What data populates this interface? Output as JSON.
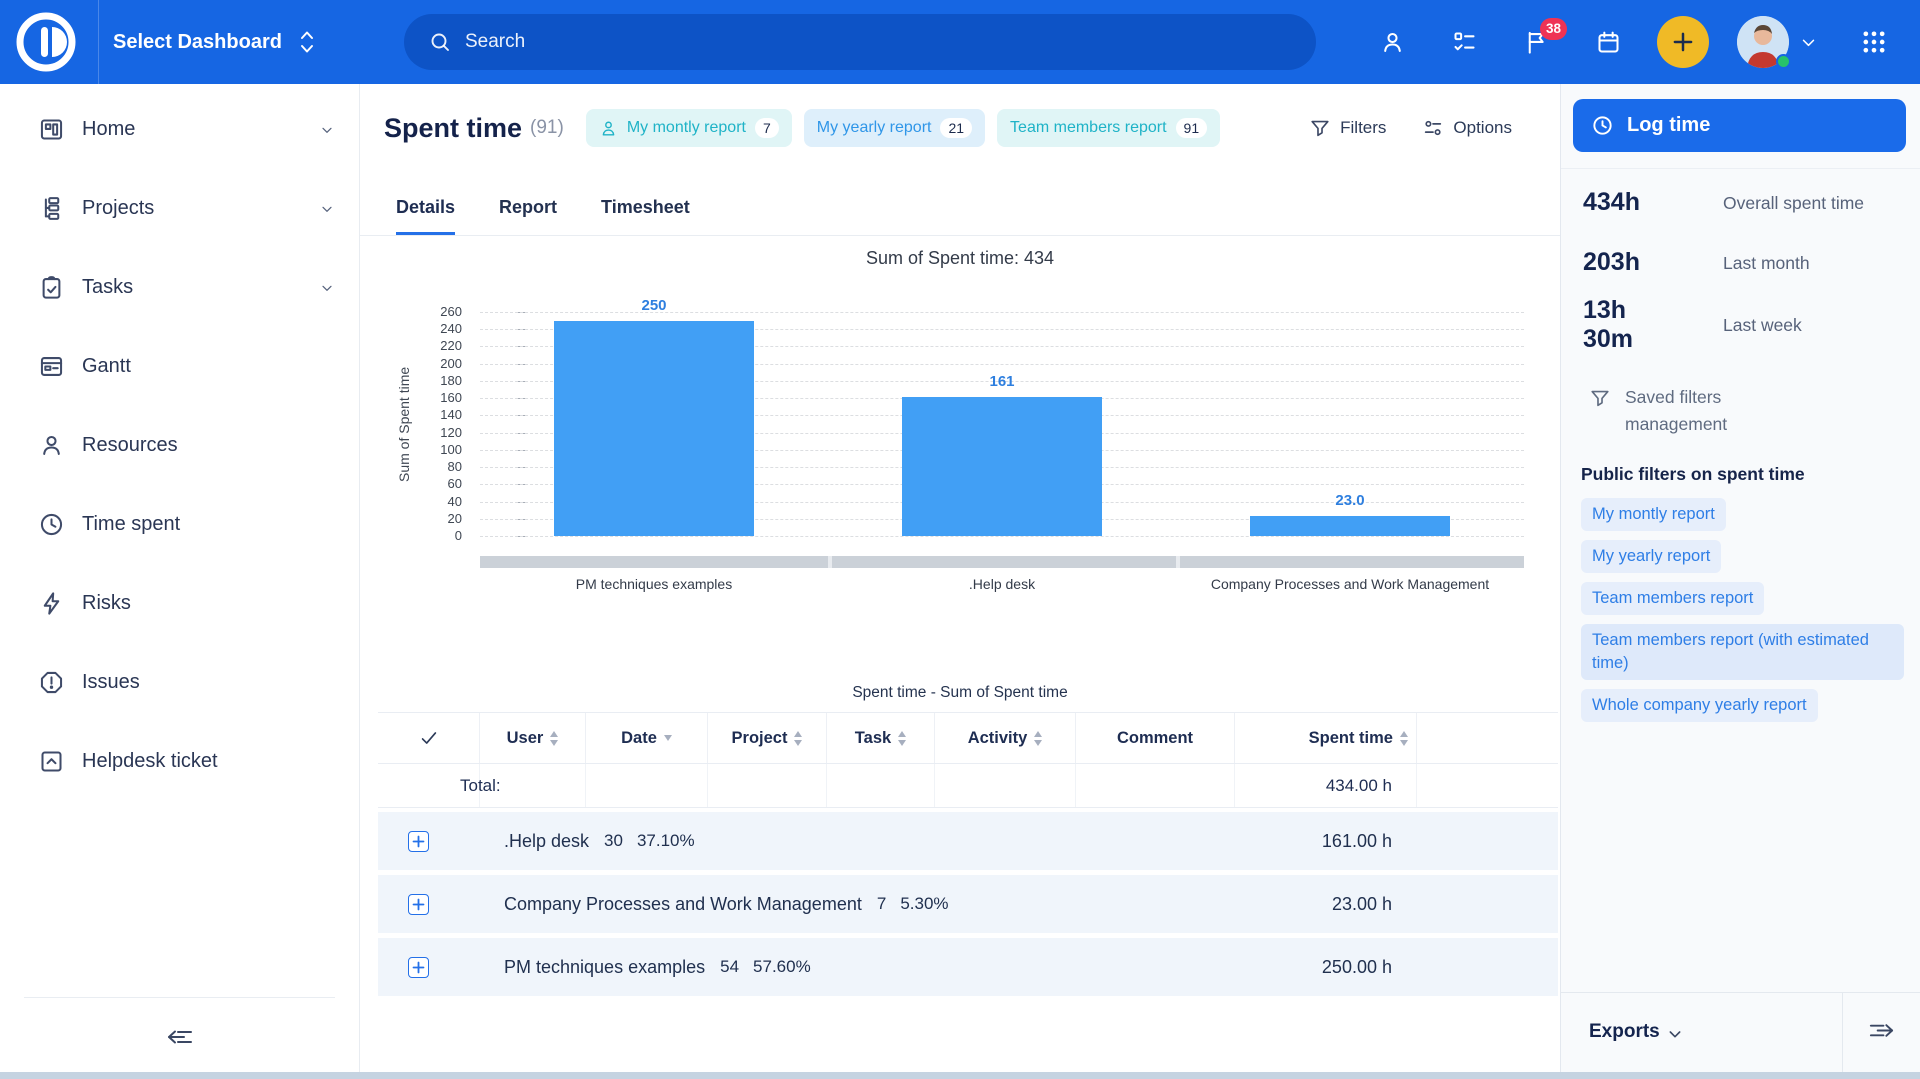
{
  "topbar": {
    "dashboard_selector": "Select Dashboard",
    "search_placeholder": "Search",
    "actions": [
      {
        "icon": "user-icon"
      },
      {
        "icon": "checklist-icon"
      },
      {
        "icon": "flag-icon",
        "badge": "38"
      },
      {
        "icon": "calendar-icon"
      }
    ]
  },
  "sidebar": {
    "items": [
      {
        "label": "Home",
        "icon": "home-dashboard-icon",
        "expandable": true
      },
      {
        "label": "Projects",
        "icon": "projects-icon",
        "expandable": true
      },
      {
        "label": "Tasks",
        "icon": "tasks-icon",
        "expandable": true
      },
      {
        "label": "Gantt",
        "icon": "gantt-icon",
        "expandable": false
      },
      {
        "label": "Resources",
        "icon": "resources-icon",
        "expandable": false
      },
      {
        "label": "Time spent",
        "icon": "clock-icon",
        "expandable": false
      },
      {
        "label": "Risks",
        "icon": "risks-icon",
        "expandable": false
      },
      {
        "label": "Issues",
        "icon": "issues-icon",
        "expandable": false
      },
      {
        "label": "Helpdesk ticket",
        "icon": "helpdesk-icon",
        "expandable": false
      }
    ]
  },
  "header": {
    "title": "Spent time",
    "count": "(91)",
    "chips": [
      {
        "label": "My montly report",
        "count": "7",
        "style": "teal",
        "has_user_icon": true
      },
      {
        "label": "My yearly report",
        "count": "21",
        "style": "blue",
        "has_user_icon": false
      },
      {
        "label": "Team members report",
        "count": "91",
        "style": "teal",
        "has_user_icon": false
      }
    ],
    "filters_label": "Filters",
    "options_label": "Options"
  },
  "tabs": [
    {
      "label": "Details",
      "active": true
    },
    {
      "label": "Report",
      "active": false
    },
    {
      "label": "Timesheet",
      "active": false
    }
  ],
  "chart_data": {
    "type": "bar",
    "title": "Sum of Spent time: 434",
    "ylabel": "Sum of Spent time",
    "categories": [
      "PM techniques examples",
      ".Help desk",
      "Company Processes and Work Management"
    ],
    "values": [
      250,
      161,
      23
    ],
    "value_labels": [
      "250",
      "161",
      "23.0"
    ],
    "ylim": [
      0,
      260
    ],
    "ytick_step": 20,
    "grid": "dashed-horizontal",
    "legend": "none",
    "bar_color": "#419FF5"
  },
  "table": {
    "title": "Spent time - Sum of Spent time",
    "columns": [
      {
        "label": "User",
        "sort": "updown"
      },
      {
        "label": "Date",
        "sort": "dropdown"
      },
      {
        "label": "Project",
        "sort": "updown"
      },
      {
        "label": "Task",
        "sort": "updown"
      },
      {
        "label": "Activity",
        "sort": "updown"
      },
      {
        "label": "Comment",
        "sort": "none"
      },
      {
        "label": "Spent time",
        "sort": "updown",
        "align": "right"
      }
    ],
    "total_label": "Total:",
    "total_value": "434.00 h",
    "rows": [
      {
        "label": ".Help desk",
        "count": "30",
        "percent": "37.10%",
        "spent": "161.00 h"
      },
      {
        "label": "Company Processes and Work Management",
        "count": "7",
        "percent": "5.30%",
        "spent": "23.00 h"
      },
      {
        "label": "PM techniques examples",
        "count": "54",
        "percent": "57.60%",
        "spent": "250.00 h"
      }
    ]
  },
  "panel": {
    "log_time_label": "Log time",
    "stats": [
      {
        "value": "434h",
        "label": "Overall spent time"
      },
      {
        "value": "203h",
        "label": "Last month"
      },
      {
        "value": "13h 30m",
        "label": "Last week"
      }
    ],
    "saved_filters_label": "Saved filters management",
    "public_filters_title": "Public filters on spent time",
    "public_filters": [
      {
        "label": "My montly report",
        "wide": false
      },
      {
        "label": "My yearly report",
        "wide": false
      },
      {
        "label": "Team members report",
        "wide": false
      },
      {
        "label": "Team members report (with estimated time)",
        "wide": true
      },
      {
        "label": "Whole company yearly report",
        "wide": false
      }
    ],
    "exports_label": "Exports"
  },
  "colors": {
    "topbar": "#1666E3",
    "accent_blue": "#2470E8",
    "bar_blue": "#419FF5",
    "chip_teal_text": "#1FB3C7",
    "chip_blue_text": "#2F96E8",
    "badge_red": "#EF3355",
    "plus_yellow": "#F0BA26",
    "navy_text": "#14244E"
  }
}
